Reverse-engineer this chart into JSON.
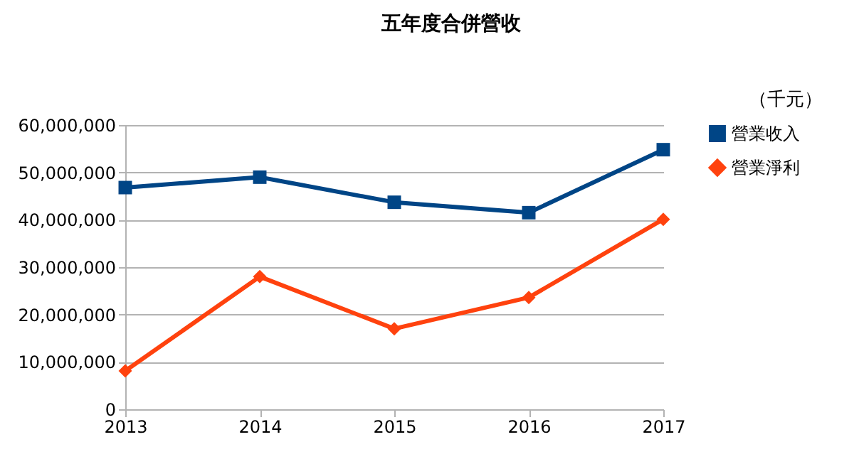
{
  "chart_data": {
    "type": "line",
    "title": "五年度合併營收",
    "annotations": [
      "（千元）"
    ],
    "categories": [
      "2013",
      "2014",
      "2015",
      "2016",
      "2017"
    ],
    "series": [
      {
        "name": "營業收入",
        "color": "#004586",
        "marker": "square",
        "values": [
          46800000,
          49000000,
          43700000,
          41500000,
          54800000
        ]
      },
      {
        "name": "營業淨利",
        "color": "#ff420e",
        "marker": "diamond",
        "values": [
          8100000,
          28000000,
          17000000,
          23600000,
          40100000
        ]
      }
    ],
    "ylim": [
      0,
      60000000
    ],
    "yticks": [
      0,
      {
        "value": 10000000,
        "label": "10,000,000"
      },
      {
        "value": 20000000,
        "label": "20,000,000"
      },
      {
        "value": 30000000,
        "label": "30,000,000"
      },
      {
        "value": 40000000,
        "label": "40,000,000"
      },
      {
        "value": 50000000,
        "label": "50,000,000"
      },
      {
        "value": 60000000,
        "label": "60,000,000"
      }
    ],
    "grid": "y",
    "legend": "right"
  }
}
